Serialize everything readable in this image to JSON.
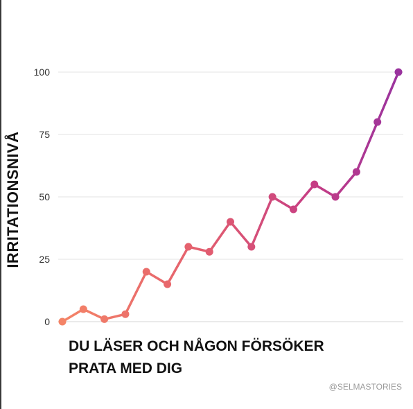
{
  "chart_data": {
    "type": "line",
    "title": "",
    "ylabel": "IRRITATIONSNIVÅ",
    "xlabel_lines": [
      "DU LÄSER OCH NÅGON FÖRSÖKER",
      "PRATA MED DIG"
    ],
    "ylim": [
      0,
      100
    ],
    "yticks": [
      0,
      25,
      50,
      75,
      100
    ],
    "grid": true,
    "x": [
      1,
      2,
      3,
      4,
      5,
      6,
      7,
      8,
      9,
      10,
      11,
      12,
      13,
      14,
      15,
      16,
      17
    ],
    "values": [
      0,
      5,
      1,
      3,
      20,
      15,
      30,
      28,
      40,
      30,
      50,
      45,
      55,
      50,
      60,
      80,
      100
    ],
    "gradient_colors": [
      "#f48467",
      "#e4606e",
      "#c53d84",
      "#9a339e"
    ]
  },
  "credit": "@SELMASTORIES"
}
